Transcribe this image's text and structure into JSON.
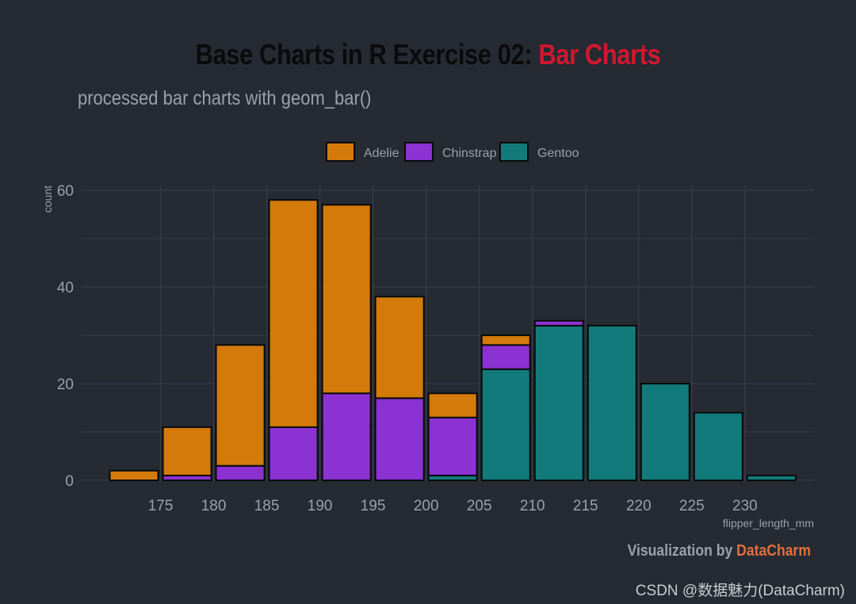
{
  "title": {
    "main": "Base Charts in R Exercise 02: ",
    "accent": "Bar Charts"
  },
  "subtitle": "processed bar charts with geom_bar()",
  "caption": {
    "prefix": "Visualization by ",
    "brand": "DataCharm"
  },
  "watermark": "CSDN @数据魅力(DataCharm)",
  "colors": {
    "background": "#252a33",
    "grid": "#363c47",
    "text": "#9aa1ab",
    "title": "#0b0b0b",
    "accent": "#d0182e",
    "brand": "#e0703f",
    "bar_outline": "#0a0a0a"
  },
  "chart_data": {
    "type": "bar",
    "stacked": true,
    "binwidth": 5,
    "xlabel": "flipper_length_mm",
    "ylabel": "count",
    "xlim": [
      167.5,
      236.5
    ],
    "ylim": [
      0,
      61
    ],
    "x_ticks": [
      175,
      180,
      185,
      190,
      195,
      200,
      205,
      210,
      215,
      220,
      225,
      230
    ],
    "y_ticks": [
      0,
      20,
      40,
      60
    ],
    "grid": true,
    "legend_position": "top",
    "bin_centers": [
      172.5,
      177.5,
      182.5,
      187.5,
      192.5,
      197.5,
      202.5,
      207.5,
      212.5,
      217.5,
      222.5,
      227.5,
      232.5
    ],
    "series": [
      {
        "name": "Adelie",
        "color": "#d37a0b",
        "values": [
          2,
          10,
          25,
          47,
          39,
          21,
          5,
          2,
          0,
          0,
          0,
          0,
          0
        ]
      },
      {
        "name": "Chinstrap",
        "color": "#8b32d2",
        "values": [
          0,
          1,
          3,
          11,
          18,
          17,
          12,
          5,
          1,
          0,
          0,
          0,
          0
        ]
      },
      {
        "name": "Gentoo",
        "color": "#127a7b",
        "values": [
          0,
          0,
          0,
          0,
          0,
          0,
          1,
          23,
          32,
          32,
          20,
          14,
          1
        ]
      }
    ]
  }
}
